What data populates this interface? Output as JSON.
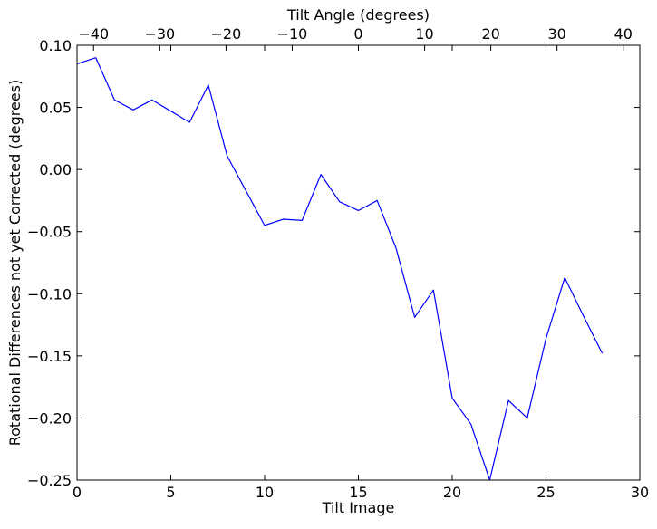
{
  "chart_data": {
    "type": "line",
    "xlabel": "Tilt Image",
    "ylabel": "Rotational Differences not yet Corrected (degrees)",
    "top_xlabel": "Tilt Angle (degrees)",
    "xlim": [
      0,
      30
    ],
    "ylim": [
      -0.25,
      0.1
    ],
    "top_xlim": [
      -42.5,
      42.5
    ],
    "x_ticks": [
      0,
      5,
      10,
      15,
      20,
      25,
      30
    ],
    "y_ticks": [
      0.1,
      0.05,
      0.0,
      -0.05,
      -0.1,
      -0.15,
      -0.2,
      -0.25
    ],
    "y_tick_labels": [
      "0.10",
      "0.05",
      "0.00",
      "−0.05",
      "−0.10",
      "−0.15",
      "−0.20",
      "−0.25"
    ],
    "top_x_ticks": [
      -40,
      -30,
      -20,
      -10,
      0,
      10,
      20,
      30,
      40
    ],
    "top_x_tick_labels": [
      "−40",
      "−30",
      "−20",
      "−10",
      "0",
      "10",
      "20",
      "30",
      "40"
    ],
    "grid": false,
    "series": [
      {
        "color": "#0000ff",
        "x": [
          0,
          1,
          2,
          3,
          4,
          5,
          6,
          7,
          8,
          9,
          10,
          11,
          12,
          13,
          14,
          15,
          16,
          17,
          18,
          19,
          20,
          21,
          22,
          23,
          24,
          25,
          26,
          27,
          28
        ],
        "values": [
          0.085,
          0.09,
          0.056,
          0.048,
          0.056,
          0.047,
          0.038,
          0.068,
          0.011,
          -0.017,
          -0.045,
          -0.04,
          -0.041,
          -0.004,
          -0.026,
          -0.033,
          -0.025,
          -0.063,
          -0.119,
          -0.097,
          -0.184,
          -0.205,
          -0.25,
          -0.186,
          -0.2,
          -0.136,
          -0.087,
          -0.118,
          -0.148
        ]
      }
    ]
  }
}
